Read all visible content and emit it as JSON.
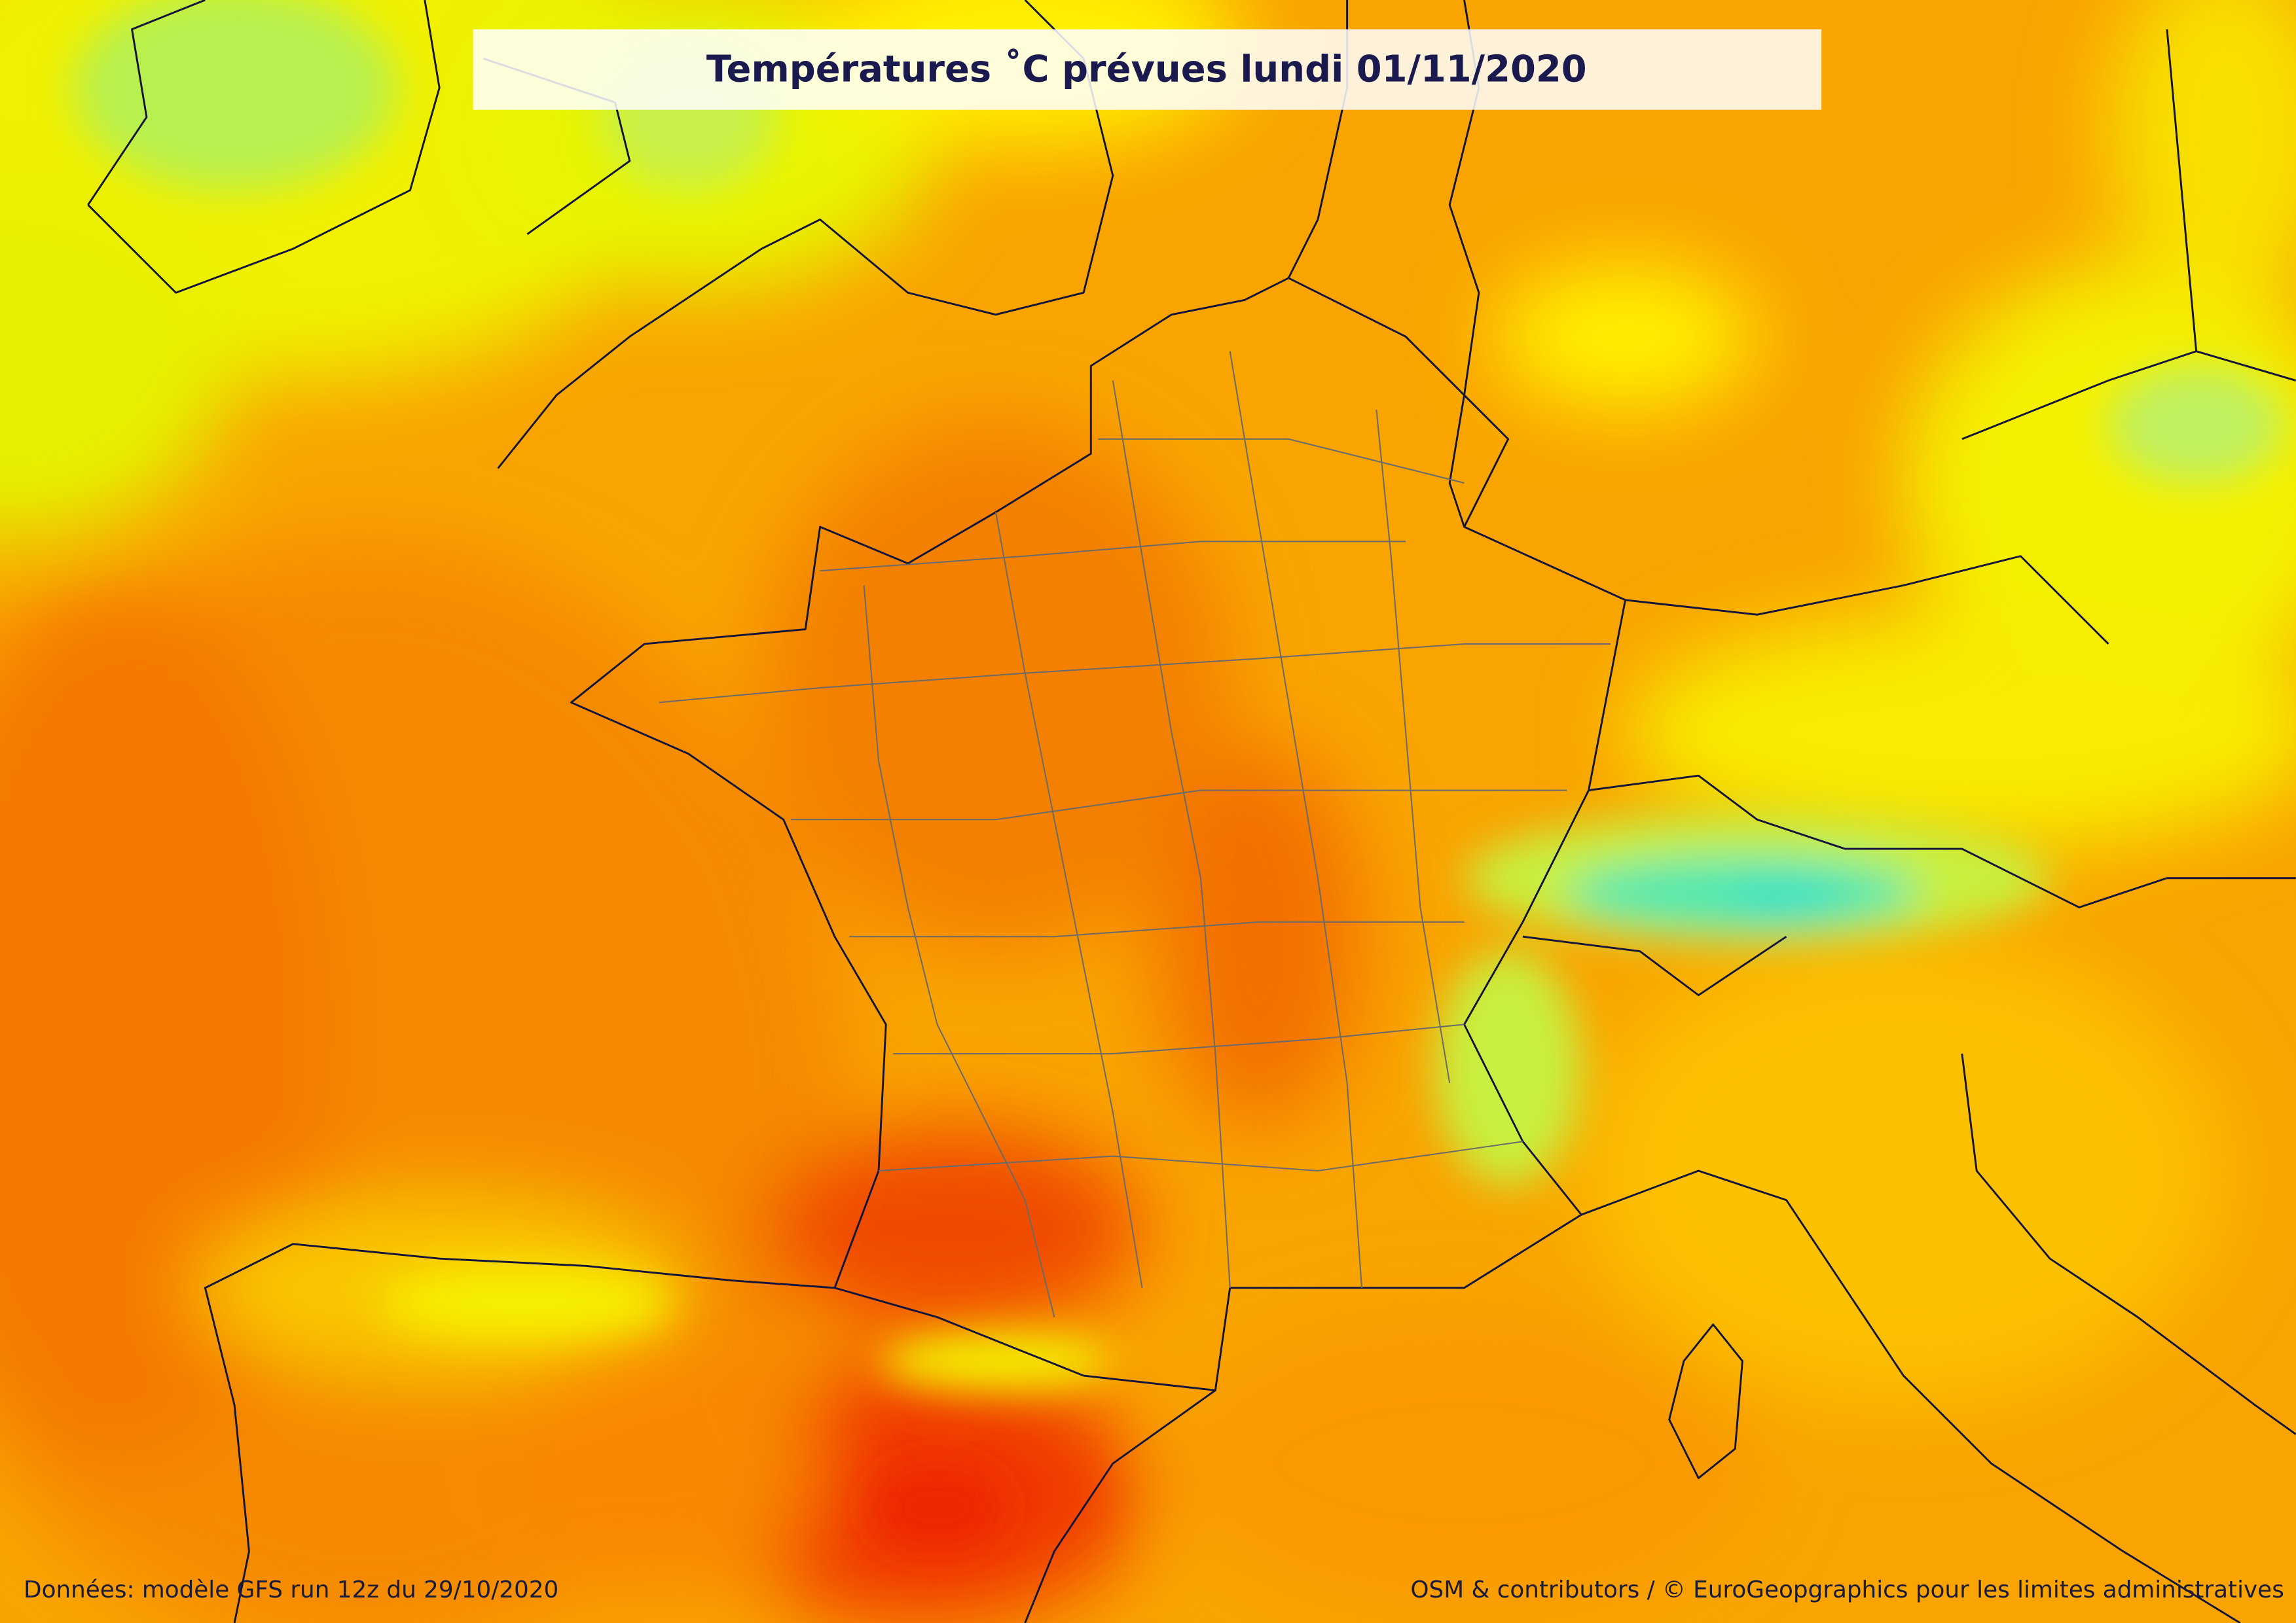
{
  "header": {
    "title": "Températures ˚C prévues lundi 01/11/2020"
  },
  "footer": {
    "source": "Données: modèle GFS run 12z du 29/10/2020",
    "credits": "OSM & contributors / © EuroGeopgraphics pour les limites administratives"
  }
}
